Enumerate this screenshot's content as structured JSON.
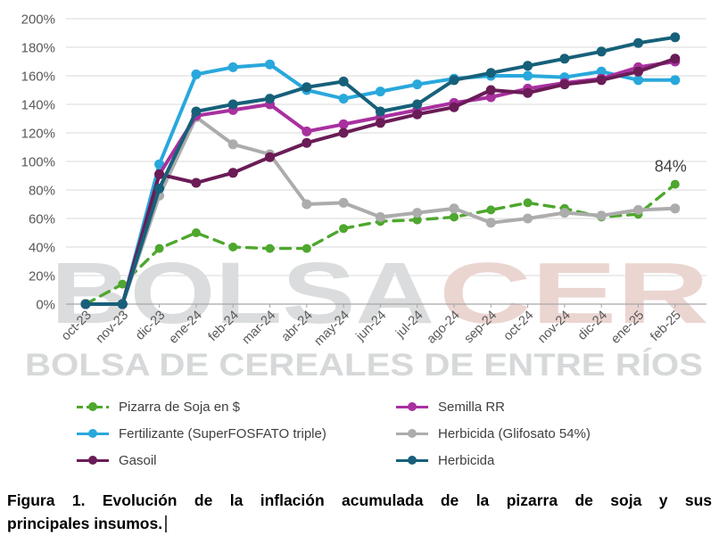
{
  "chart_data": {
    "type": "line",
    "title": "",
    "xlabel": "",
    "ylabel": "",
    "ylim": [
      0,
      200
    ],
    "ytick_step": 20,
    "ytick_suffix": "%",
    "grid": true,
    "legend_position": "bottom",
    "categories": [
      "oct-23",
      "nov-23",
      "dic-23",
      "ene-24",
      "feb-24",
      "mar-24",
      "abr-24",
      "may-24",
      "jun-24",
      "jul-24",
      "ago-24",
      "sep-24",
      "oct-24",
      "nov-24",
      "dic-24",
      "ene-25",
      "feb-25"
    ],
    "series": [
      {
        "name": "Pizarra de Soja en $",
        "color": "#4EA72E",
        "dash": true,
        "values": [
          0,
          14,
          39,
          50,
          40,
          39,
          39,
          53,
          58,
          59,
          61,
          66,
          71,
          67,
          61,
          63,
          84
        ]
      },
      {
        "name": "Semilla RR",
        "color": "#A9309F",
        "dash": false,
        "values": [
          0,
          0,
          91,
          132,
          136,
          140,
          121,
          126,
          131,
          136,
          141,
          145,
          151,
          155,
          158,
          166,
          170
        ]
      },
      {
        "name": "Fertilizante (SuperFOSFATO triple)",
        "color": "#29A8DC",
        "dash": false,
        "values": [
          0,
          0,
          98,
          161,
          166,
          168,
          150,
          144,
          149,
          154,
          158,
          160,
          160,
          159,
          163,
          157,
          157
        ]
      },
      {
        "name": "Herbicida (Glifosato 54%)",
        "color": "#ACACAC",
        "dash": false,
        "values": [
          0,
          0,
          76,
          131,
          112,
          105,
          70,
          71,
          61,
          64,
          67,
          57,
          60,
          64,
          62,
          66,
          67
        ]
      },
      {
        "name": "Gasoil",
        "color": "#6A1C56",
        "dash": false,
        "values": [
          0,
          0,
          91,
          85,
          92,
          103,
          113,
          120,
          127,
          133,
          138,
          150,
          148,
          154,
          157,
          163,
          172
        ]
      },
      {
        "name": "Herbicida",
        "color": "#17607A",
        "dash": false,
        "values": [
          0,
          0,
          81,
          135,
          140,
          144,
          152,
          156,
          135,
          140,
          157,
          162,
          167,
          172,
          177,
          183,
          187
        ]
      }
    ],
    "annotation": {
      "text": "84%",
      "series": "Pizarra de Soja en $",
      "category": "feb-25"
    }
  },
  "watermark": {
    "line1_left": "BOLSA",
    "line1_right": "CER",
    "line1_left_color": "#DADCDD",
    "line1_right_color": "#EBD5D1",
    "line2": "BOLSA DE CEREALES DE ENTRE RÍOS",
    "line2_color": "#D6D8D9"
  },
  "caption": {
    "line1": "Figura 1. Evolución de la inflación acumulada de la pizarra de soja y sus",
    "line2": "principales insumos."
  }
}
